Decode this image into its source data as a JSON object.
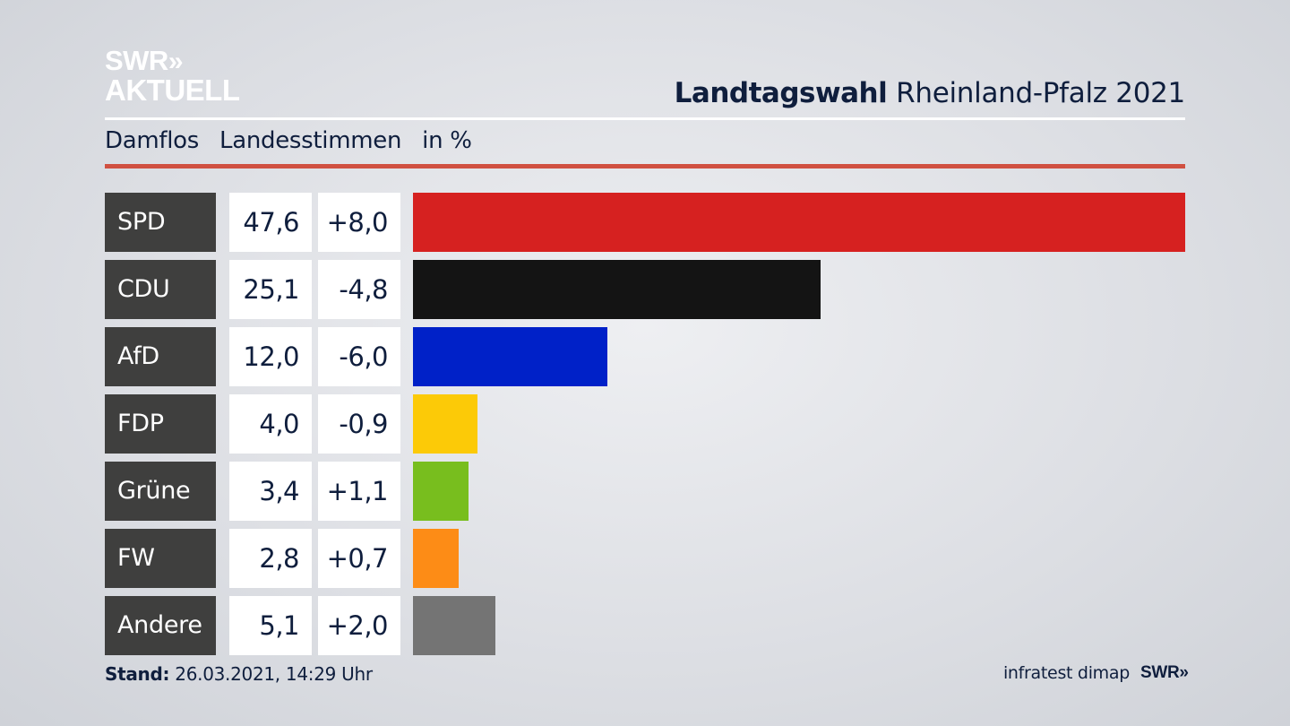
{
  "brand": {
    "line1": "SWR",
    "line1_arrows": "»",
    "line2": "AKTUELL"
  },
  "header": {
    "title_bold": "Landtagswahl",
    "title_rest": "Rheinland-Pfalz 2021"
  },
  "subheader": {
    "place": "Damflos",
    "metric": "Landesstimmen",
    "unit": "in %"
  },
  "chart_data": {
    "type": "bar",
    "orientation": "horizontal",
    "categories": [
      "SPD",
      "CDU",
      "AfD",
      "FDP",
      "Grüne",
      "FW",
      "Andere"
    ],
    "values": [
      47.6,
      25.1,
      12.0,
      4.0,
      3.4,
      2.8,
      5.1
    ],
    "value_labels": [
      "47,6",
      "25,1",
      "12,0",
      "4,0",
      "3,4",
      "2,8",
      "5,1"
    ],
    "changes": [
      8.0,
      -4.8,
      -6.0,
      -0.9,
      1.1,
      0.7,
      2.0
    ],
    "change_labels": [
      "+8,0",
      "-4,8",
      "-6,0",
      "-0,9",
      "+1,1",
      "+0,7",
      "+2,0"
    ],
    "colors": [
      "#d62120",
      "#141414",
      "#0021c8",
      "#fcca07",
      "#78be1e",
      "#fd8c16",
      "#747474"
    ],
    "xlim": [
      0,
      47.6
    ]
  },
  "footer": {
    "stand_label": "Stand:",
    "stand_value": "26.03.2021, 14:29 Uhr",
    "source": "infratest dimap",
    "swr": "SWR",
    "swr_arrows": "»"
  }
}
